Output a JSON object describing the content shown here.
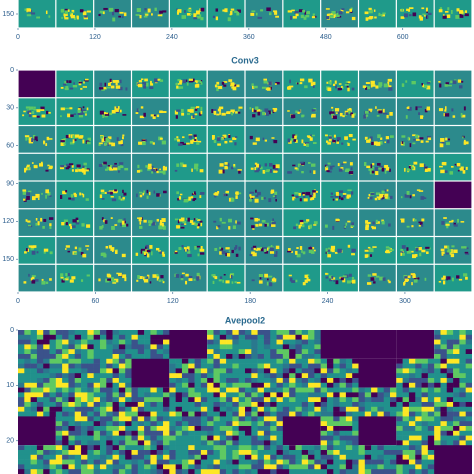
{
  "chart_data": [
    {
      "type": "heatmap",
      "xlim": [
        0,
        708
      ],
      "xticks": [
        0,
        120,
        240,
        360,
        480,
        600
      ],
      "ylim": [
        0,
        170
      ],
      "yticks": [
        150
      ],
      "colormap": [
        "#440154",
        "#3b528b",
        "#21918c",
        "#5ec962",
        "#fde725"
      ]
    },
    {
      "type": "heatmap",
      "title": "Conv3",
      "xlim": [
        0,
        352
      ],
      "xticks": [
        0,
        60,
        120,
        180,
        240,
        300
      ],
      "ylim": [
        0,
        176
      ],
      "yticks": [
        0,
        30,
        60,
        90,
        120,
        150
      ],
      "colormap": [
        "#440154",
        "#3b528b",
        "#21918c",
        "#5ec962",
        "#fde725"
      ]
    },
    {
      "type": "heatmap",
      "title": "Avepool2",
      "ylim": [
        0,
        26
      ],
      "yticks": [
        0,
        10,
        20
      ],
      "colormap": [
        "#440154",
        "#3b528b",
        "#21918c",
        "#5ec962",
        "#fde725"
      ]
    }
  ]
}
